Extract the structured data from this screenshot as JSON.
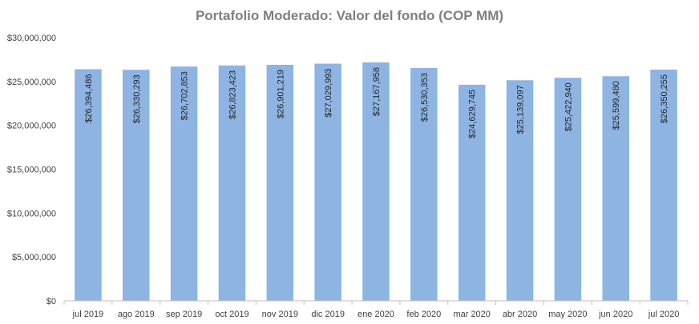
{
  "chart_data": {
    "type": "bar",
    "title": "Portafolio Moderado: Valor del fondo (COP MM)",
    "xlabel": "",
    "ylabel": "",
    "categories": [
      "jul 2019",
      "ago 2019",
      "sep 2019",
      "oct 2019",
      "nov 2019",
      "dic 2019",
      "ene 2020",
      "feb 2020",
      "mar 2020",
      "abr 2020",
      "may 2020",
      "jun 2020",
      "jul 2020"
    ],
    "values": [
      26394486,
      26330293,
      26702853,
      26823423,
      26901219,
      27029993,
      27167958,
      26530353,
      24629745,
      25139097,
      25422940,
      25599480,
      26350255
    ],
    "data_labels": [
      "$26,394,486",
      "$26,330,293",
      "$26,702,853",
      "$26,823,423",
      "$26,901,219",
      "$27,029,993",
      "$27,167,958",
      "$26,530,353",
      "$24,629,745",
      "$25,139,097",
      "$25,422,940",
      "$25,599,480",
      "$26,350,255"
    ],
    "ylim": [
      0,
      30000000
    ],
    "yticks": [
      0,
      5000000,
      10000000,
      15000000,
      20000000,
      25000000,
      30000000
    ],
    "ytick_labels": [
      "$0",
      "$5,000,000",
      "$10,000,000",
      "$15,000,000",
      "$20,000,000",
      "$25,000,000",
      "$30,000,000"
    ],
    "bar_color": "#8db4e2",
    "grid": false,
    "legend": "none"
  }
}
